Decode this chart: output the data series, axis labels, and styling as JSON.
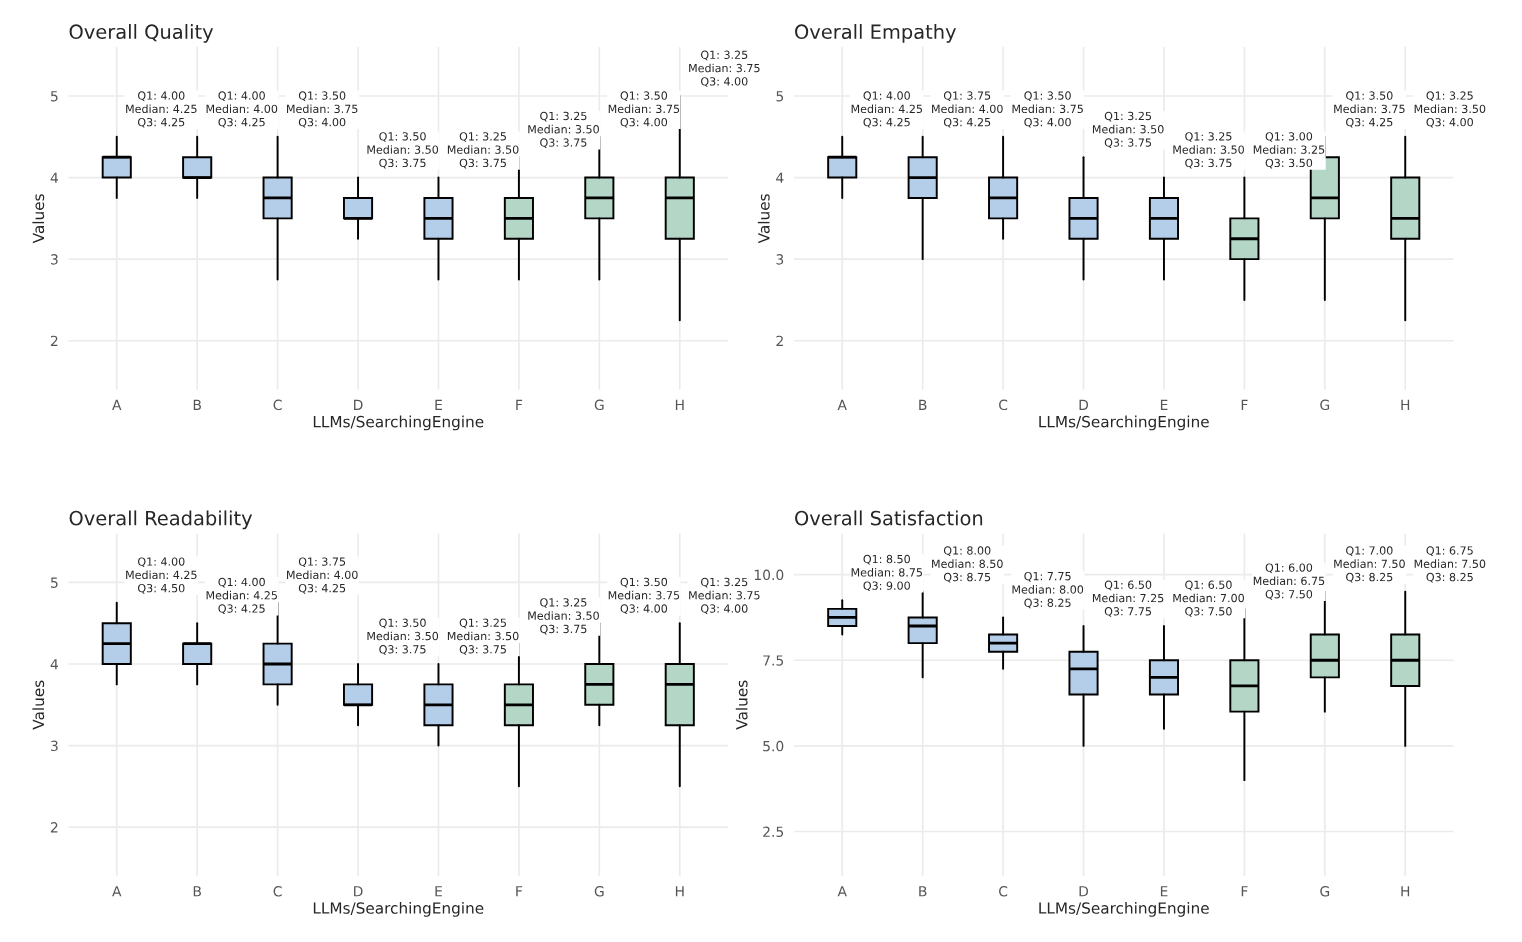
{
  "chart_data": [
    {
      "type": "box",
      "title": "Overall Quality",
      "xlabel": "LLMs/SearchingEngine",
      "ylabel": "Values",
      "categories": [
        "A",
        "B",
        "C",
        "D",
        "E",
        "F",
        "G",
        "H"
      ],
      "ylim": [
        1.4,
        5.6
      ],
      "yticks": [
        2,
        3,
        4,
        5
      ],
      "grid": true,
      "colors": [
        "#b4cde9",
        "#b4cde9",
        "#b4cde9",
        "#b4cde9",
        "#b4cde9",
        "#b4d6c6",
        "#b4d6c6",
        "#b4d6c6"
      ],
      "boxes": [
        {
          "low": 3.75,
          "q1": 4.0,
          "median": 4.25,
          "q3": 4.25,
          "high": 4.5
        },
        {
          "low": 3.75,
          "q1": 4.0,
          "median": 4.0,
          "q3": 4.25,
          "high": 4.5
        },
        {
          "low": 2.75,
          "q1": 3.5,
          "median": 3.75,
          "q3": 4.0,
          "high": 4.5
        },
        {
          "low": 3.25,
          "q1": 3.5,
          "median": 3.5,
          "q3": 3.75,
          "high": 4.0
        },
        {
          "low": 2.75,
          "q1": 3.25,
          "median": 3.5,
          "q3": 3.75,
          "high": 4.0
        },
        {
          "low": 2.75,
          "q1": 3.25,
          "median": 3.5,
          "q3": 3.75,
          "high": 4.25
        },
        {
          "low": 2.75,
          "q1": 3.5,
          "median": 3.75,
          "q3": 4.0,
          "high": 4.5
        },
        {
          "low": 2.25,
          "q1": 3.25,
          "median": 3.75,
          "q3": 4.0,
          "high": 5.0
        }
      ],
      "annotations": [
        {
          "text": "Q1: 4.00\nMedian: 4.25\nQ3: 4.25",
          "x": "A",
          "y": 4.5
        },
        {
          "text": "Q1: 4.00\nMedian: 4.00\nQ3: 4.25",
          "x": "B",
          "y": 4.5
        },
        {
          "text": "Q1: 3.50\nMedian: 3.75\nQ3: 4.00",
          "x": "C",
          "y": 4.5
        },
        {
          "text": "Q1: 3.50\nMedian: 3.50\nQ3: 3.75",
          "x": "D",
          "y": 4.0
        },
        {
          "text": "Q1: 3.25\nMedian: 3.50\nQ3: 3.75",
          "x": "E",
          "y": 4.0
        },
        {
          "text": "Q1: 3.25\nMedian: 3.50\nQ3: 3.75",
          "x": "F",
          "y": 4.25
        },
        {
          "text": "Q1: 3.50\nMedian: 3.75\nQ3: 4.00",
          "x": "G",
          "y": 4.5
        },
        {
          "text": "Q1: 3.25\nMedian: 3.75\nQ3: 4.00",
          "x": "H",
          "y": 5.0
        }
      ]
    },
    {
      "type": "box",
      "title": "Overall Empathy",
      "xlabel": "LLMs/SearchingEngine",
      "ylabel": "Values",
      "categories": [
        "A",
        "B",
        "C",
        "D",
        "E",
        "F",
        "G",
        "H"
      ],
      "ylim": [
        1.4,
        5.6
      ],
      "yticks": [
        2,
        3,
        4,
        5
      ],
      "grid": true,
      "colors": [
        "#b4cde9",
        "#b4cde9",
        "#b4cde9",
        "#b4cde9",
        "#b4cde9",
        "#b4d6c6",
        "#b4d6c6",
        "#b4d6c6"
      ],
      "boxes": [
        {
          "low": 3.75,
          "q1": 4.0,
          "median": 4.25,
          "q3": 4.25,
          "high": 4.5
        },
        {
          "low": 3.0,
          "q1": 3.75,
          "median": 4.0,
          "q3": 4.25,
          "high": 4.5
        },
        {
          "low": 3.25,
          "q1": 3.5,
          "median": 3.75,
          "q3": 4.0,
          "high": 4.5
        },
        {
          "low": 2.75,
          "q1": 3.25,
          "median": 3.5,
          "q3": 3.75,
          "high": 4.25
        },
        {
          "low": 2.75,
          "q1": 3.25,
          "median": 3.5,
          "q3": 3.75,
          "high": 4.0
        },
        {
          "low": 2.5,
          "q1": 3.0,
          "median": 3.25,
          "q3": 3.5,
          "high": 4.0
        },
        {
          "low": 2.5,
          "q1": 3.5,
          "median": 3.75,
          "q3": 4.25,
          "high": 4.5
        },
        {
          "low": 2.25,
          "q1": 3.25,
          "median": 3.5,
          "q3": 4.0,
          "high": 4.5
        }
      ],
      "annotations": [
        {
          "text": "Q1: 4.00\nMedian: 4.25\nQ3: 4.25",
          "x": "A",
          "y": 4.5
        },
        {
          "text": "Q1: 3.75\nMedian: 4.00\nQ3: 4.25",
          "x": "B",
          "y": 4.5
        },
        {
          "text": "Q1: 3.50\nMedian: 3.75\nQ3: 4.00",
          "x": "C",
          "y": 4.5
        },
        {
          "text": "Q1: 3.25\nMedian: 3.50\nQ3: 3.75",
          "x": "D",
          "y": 4.25
        },
        {
          "text": "Q1: 3.25\nMedian: 3.50\nQ3: 3.75",
          "x": "E",
          "y": 4.0
        },
        {
          "text": "Q1: 3.00\nMedian: 3.25\nQ3: 3.50",
          "x": "F",
          "y": 4.0
        },
        {
          "text": "Q1: 3.50\nMedian: 3.75\nQ3: 4.25",
          "x": "G",
          "y": 4.5
        },
        {
          "text": "Q1: 3.25\nMedian: 3.50\nQ3: 4.00",
          "x": "H",
          "y": 4.5
        }
      ]
    },
    {
      "type": "box",
      "title": "Overall Readability",
      "xlabel": "LLMs/SearchingEngine",
      "ylabel": "Values",
      "categories": [
        "A",
        "B",
        "C",
        "D",
        "E",
        "F",
        "G",
        "H"
      ],
      "ylim": [
        1.4,
        5.6
      ],
      "yticks": [
        2,
        3,
        4,
        5
      ],
      "grid": true,
      "colors": [
        "#b4cde9",
        "#b4cde9",
        "#b4cde9",
        "#b4cde9",
        "#b4cde9",
        "#b4d6c6",
        "#b4d6c6",
        "#b4d6c6"
      ],
      "boxes": [
        {
          "low": 3.75,
          "q1": 4.0,
          "median": 4.25,
          "q3": 4.5,
          "high": 4.75
        },
        {
          "low": 3.75,
          "q1": 4.0,
          "median": 4.25,
          "q3": 4.25,
          "high": 4.5
        },
        {
          "low": 3.5,
          "q1": 3.75,
          "median": 4.0,
          "q3": 4.25,
          "high": 4.75
        },
        {
          "low": 3.25,
          "q1": 3.5,
          "median": 3.5,
          "q3": 3.75,
          "high": 4.0
        },
        {
          "low": 3.0,
          "q1": 3.25,
          "median": 3.5,
          "q3": 3.75,
          "high": 4.0
        },
        {
          "low": 2.5,
          "q1": 3.25,
          "median": 3.5,
          "q3": 3.75,
          "high": 4.25
        },
        {
          "low": 3.25,
          "q1": 3.5,
          "median": 3.75,
          "q3": 4.0,
          "high": 4.5
        },
        {
          "low": 2.5,
          "q1": 3.25,
          "median": 3.75,
          "q3": 4.0,
          "high": 4.5
        }
      ],
      "annotations": [
        {
          "text": "Q1: 4.00\nMedian: 4.25\nQ3: 4.50",
          "x": "A",
          "y": 4.75
        },
        {
          "text": "Q1: 4.00\nMedian: 4.25\nQ3: 4.25",
          "x": "B",
          "y": 4.5
        },
        {
          "text": "Q1: 3.75\nMedian: 4.00\nQ3: 4.25",
          "x": "C",
          "y": 4.75
        },
        {
          "text": "Q1: 3.50\nMedian: 3.50\nQ3: 3.75",
          "x": "D",
          "y": 4.0
        },
        {
          "text": "Q1: 3.25\nMedian: 3.50\nQ3: 3.75",
          "x": "E",
          "y": 4.0
        },
        {
          "text": "Q1: 3.25\nMedian: 3.50\nQ3: 3.75",
          "x": "F",
          "y": 4.25
        },
        {
          "text": "Q1: 3.50\nMedian: 3.75\nQ3: 4.00",
          "x": "G",
          "y": 4.5
        },
        {
          "text": "Q1: 3.25\nMedian: 3.75\nQ3: 4.00",
          "x": "H",
          "y": 4.5
        }
      ]
    },
    {
      "type": "box",
      "title": "Overall Satisfaction",
      "xlabel": "LLMs/SearchingEngine",
      "ylabel": "Values",
      "categories": [
        "A",
        "B",
        "C",
        "D",
        "E",
        "F",
        "G",
        "H"
      ],
      "ylim": [
        1.2,
        11.2
      ],
      "yticks": [
        {
          "value": 2.5,
          "label": "2.5"
        },
        {
          "value": 5,
          "label": "5.0"
        },
        {
          "value": 7.5,
          "label": "7.5"
        },
        {
          "value": 10,
          "label": "10.0"
        }
      ],
      "grid": true,
      "colors": [
        "#b4cde9",
        "#b4cde9",
        "#b4cde9",
        "#b4cde9",
        "#b4cde9",
        "#b4d6c6",
        "#b4d6c6",
        "#b4d6c6"
      ],
      "boxes": [
        {
          "low": 8.25,
          "q1": 8.5,
          "median": 8.75,
          "q3": 9.0,
          "high": 9.25
        },
        {
          "low": 7.0,
          "q1": 8.0,
          "median": 8.5,
          "q3": 8.75,
          "high": 9.5
        },
        {
          "low": 7.25,
          "q1": 7.75,
          "median": 8.0,
          "q3": 8.25,
          "high": 8.75
        },
        {
          "low": 5.0,
          "q1": 6.5,
          "median": 7.25,
          "q3": 7.75,
          "high": 8.5
        },
        {
          "low": 5.5,
          "q1": 6.5,
          "median": 7.0,
          "q3": 7.5,
          "high": 8.5
        },
        {
          "low": 4.0,
          "q1": 6.0,
          "median": 6.75,
          "q3": 7.5,
          "high": 9.0
        },
        {
          "low": 6.0,
          "q1": 7.0,
          "median": 7.5,
          "q3": 8.25,
          "high": 9.5
        },
        {
          "low": 5.0,
          "q1": 6.75,
          "median": 7.5,
          "q3": 8.25,
          "high": 9.5
        }
      ],
      "annotations": [
        {
          "text": "Q1: 8.50\nMedian: 8.75\nQ3: 9.00",
          "x": "A",
          "y": 9.25
        },
        {
          "text": "Q1: 8.00\nMedian: 8.50\nQ3: 8.75",
          "x": "B",
          "y": 9.5
        },
        {
          "text": "Q1: 7.75\nMedian: 8.00\nQ3: 8.25",
          "x": "C",
          "y": 8.75
        },
        {
          "text": "Q1: 6.50\nMedian: 7.25\nQ3: 7.75",
          "x": "D",
          "y": 8.5
        },
        {
          "text": "Q1: 6.50\nMedian: 7.00\nQ3: 7.50",
          "x": "E",
          "y": 8.5
        },
        {
          "text": "Q1: 6.00\nMedian: 6.75\nQ3: 7.50",
          "x": "F",
          "y": 9.0
        },
        {
          "text": "Q1: 7.00\nMedian: 7.50\nQ3: 8.25",
          "x": "G",
          "y": 9.5
        },
        {
          "text": "Q1: 6.75\nMedian: 7.50\nQ3: 8.25",
          "x": "H",
          "y": 9.5
        }
      ]
    }
  ]
}
